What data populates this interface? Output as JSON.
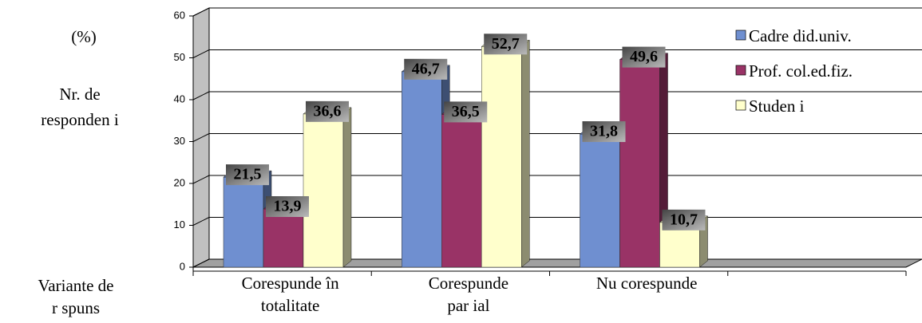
{
  "chart_data": {
    "type": "bar3d",
    "y_label_top": "(%)",
    "y_label": [
      "Nr. de",
      "responden i"
    ],
    "x_label": [
      "Variante de",
      "r spuns"
    ],
    "categories": [
      [
        "Corespunde în",
        "totalitate"
      ],
      [
        "Corespunde",
        "par ial"
      ],
      [
        "Nu corespunde"
      ],
      null
    ],
    "series": [
      {
        "name": "Cadre did.univ.",
        "color": "#6f8fd0",
        "values": [
          21.5,
          46.7,
          31.8,
          null
        ],
        "value_labels": [
          "21,5",
          "46,7",
          "31,8",
          null
        ]
      },
      {
        "name": "Prof. col.ed.fiz.",
        "color": "#993366",
        "values": [
          13.9,
          36.5,
          49.6,
          null
        ],
        "value_labels": [
          "13,9",
          "36,5",
          "49,6",
          null
        ]
      },
      {
        "name": "Studen i",
        "color": "#ffffcc",
        "values": [
          36.6,
          52.7,
          10.7,
          null
        ],
        "value_labels": [
          "36,6",
          "52,7",
          "10,7",
          null
        ]
      }
    ],
    "ylim": [
      0,
      60
    ],
    "yticks": [
      0,
      10,
      20,
      30,
      40,
      50,
      60
    ],
    "grid": true,
    "legend": "top-right"
  }
}
